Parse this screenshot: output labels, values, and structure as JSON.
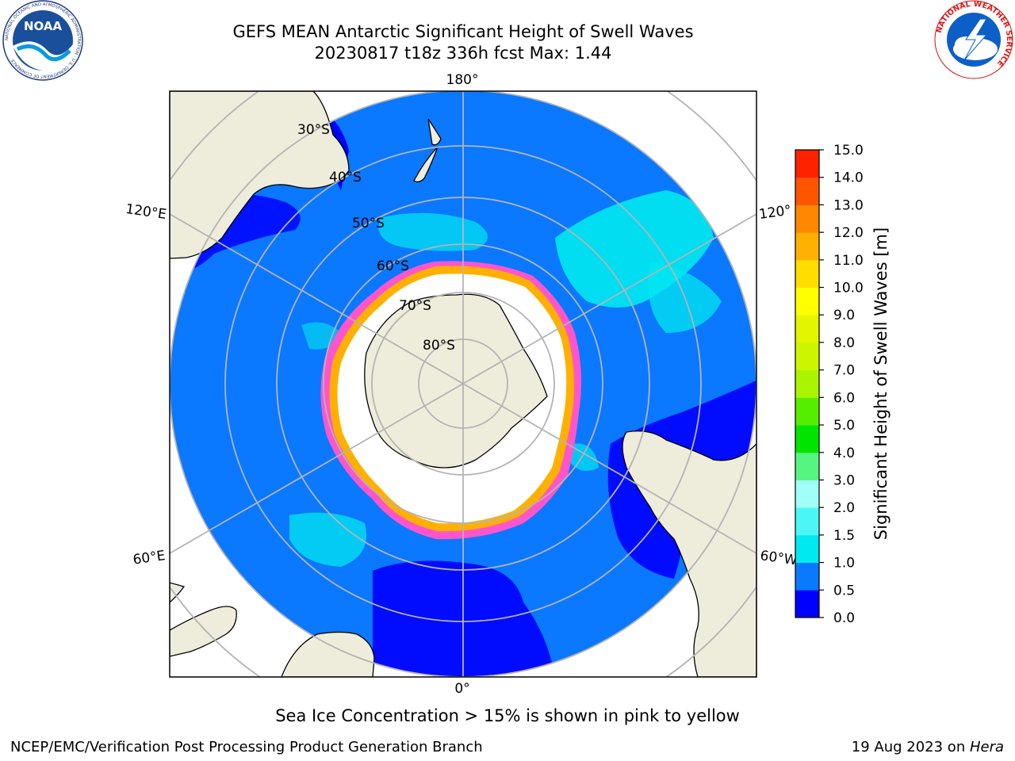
{
  "header": {
    "title_line1": "GEFS MEAN Antarctic Significant Height of Swell Waves",
    "title_line2": "20230817 t18z 336h fcst   Max: 1.44"
  },
  "logos": {
    "noaa_text": "NOAA",
    "noaa_ring_text": "NATIONAL OCEANIC AND ATMOSPHERIC ADMINISTRATION · U.S. DEPARTMENT OF COMMERCE",
    "nws_ring_text": "NATIONAL WEATHER SERVICE"
  },
  "map": {
    "projection": "south-polar-stereographic",
    "longitude_labels": [
      "180°",
      "0°",
      "120°E",
      "60°E",
      "120°",
      "60°W"
    ],
    "latitude_labels": [
      "30°S",
      "40°S",
      "50°S",
      "60°S",
      "70°S",
      "80°S"
    ],
    "colors": {
      "ocean_low": "#0000ff",
      "ocean_main": "#0a78ff",
      "cyan_patch": "#00e8f0",
      "land": "#eeecdb",
      "ice_free_zone": "#ffffff",
      "ice_edge_pink": "#ff55cc",
      "ice_edge_orange": "#ffb000",
      "grid": "#b4b4b4"
    }
  },
  "colorbar": {
    "label": "Significant Height of Swell Waves [m]",
    "ticks": [
      "15.0",
      "14.0",
      "13.0",
      "12.0",
      "11.0",
      "10.0",
      "9.0",
      "8.0",
      "7.0",
      "6.0",
      "5.0",
      "4.0",
      "3.0",
      "2.0",
      "1.5",
      "1.0",
      "0.5",
      "0.0"
    ],
    "colors": [
      "#0000ff",
      "#0a78ff",
      "#00e8f0",
      "#4cf6f6",
      "#a0fff8",
      "#56f580",
      "#00e400",
      "#55ee00",
      "#aaf400",
      "#ccf500",
      "#e4f500",
      "#ffff00",
      "#ffdd00",
      "#ffb000",
      "#ff8800",
      "#ff5500",
      "#ff2200"
    ]
  },
  "caption": "Sea Ice Concentration > 15% is shown in pink to yellow",
  "footer": {
    "left": "NCEP/EMC/Verification Post Processing Product Generation Branch",
    "right_date": "19 Aug 2023 on ",
    "right_machine": "Hera"
  }
}
